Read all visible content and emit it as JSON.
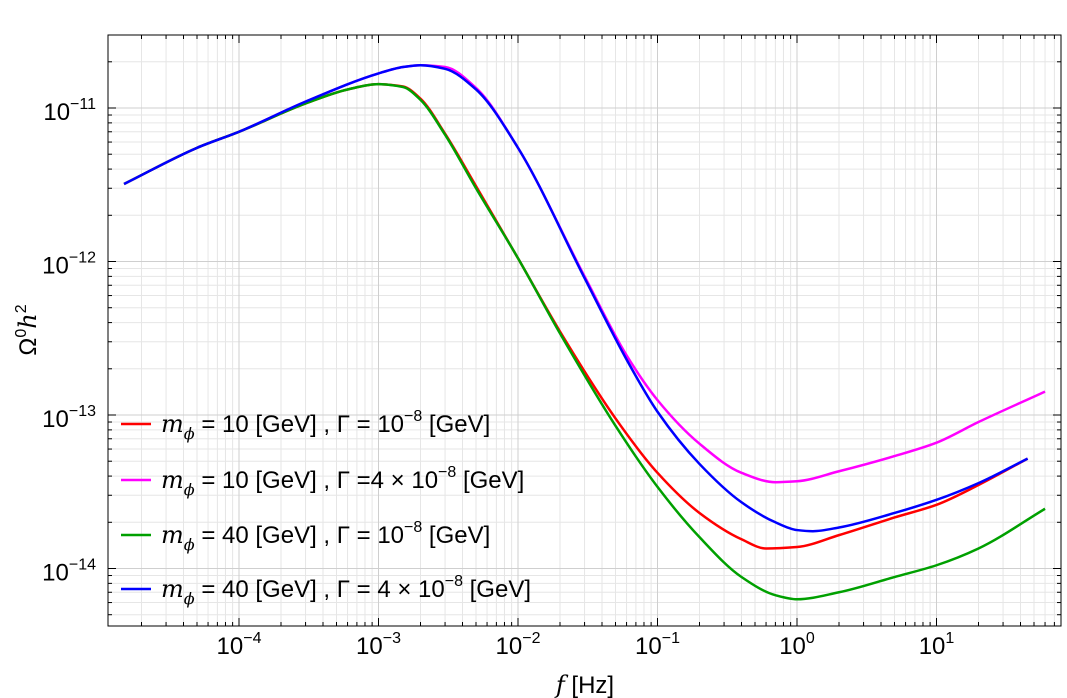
{
  "chart_data": {
    "type": "line",
    "title": "",
    "xlabel": {
      "var": "f",
      "unit": " [Hz]"
    },
    "ylabel": {
      "base": "Ω",
      "sup1": "0",
      "var": "h",
      "sup2": "2"
    },
    "xscale": "log",
    "yscale": "log",
    "xlim": [
      1.2e-05,
      70
    ],
    "ylim": [
      4e-15,
      3e-11
    ],
    "grid": true,
    "legend_position": "bottom-left",
    "x_ticks": [
      {
        "base": "10",
        "exp": "−4",
        "value": 0.0001
      },
      {
        "base": "10",
        "exp": "−3",
        "value": 0.001
      },
      {
        "base": "10",
        "exp": "−2",
        "value": 0.01
      },
      {
        "base": "10",
        "exp": "−1",
        "value": 0.1
      },
      {
        "base": "10",
        "exp": "0",
        "value": 1
      },
      {
        "base": "10",
        "exp": "1",
        "value": 10
      }
    ],
    "y_ticks": [
      {
        "base": "10",
        "exp": "−14",
        "value": 1e-14
      },
      {
        "base": "10",
        "exp": "−13",
        "value": 1e-13
      },
      {
        "base": "10",
        "exp": "−12",
        "value": 1e-12
      },
      {
        "base": "10",
        "exp": "−11",
        "value": 1e-11
      }
    ],
    "series": [
      {
        "name": "m_phi=10 GeV, Gamma=1e-8 GeV",
        "color": "#ff0000",
        "legend": {
          "m": "m",
          "sub": "ϕ",
          "mid": " = 10 [GeV] , Γ = ",
          "coef": "",
          "base": "10",
          "exp": "−8",
          "end": " [GeV]"
        },
        "x": [
          1.5e-05,
          5e-05,
          0.0001,
          0.0003,
          0.0006,
          0.001,
          0.0015,
          0.002,
          0.003,
          0.005,
          0.01,
          0.02,
          0.05,
          0.1,
          0.2,
          0.4,
          0.6,
          1,
          2,
          5,
          10,
          20,
          45
        ],
        "y": [
          3.2e-12,
          5.5e-12,
          7e-12,
          1.07e-11,
          1.32e-11,
          1.43e-11,
          1.38e-11,
          1.15e-11,
          6.8e-12,
          3.1e-12,
          1.05e-12,
          3.5e-13,
          9.5e-14,
          4.2e-14,
          2.3e-14,
          1.55e-14,
          1.35e-14,
          1.38e-14,
          1.65e-14,
          2.15e-14,
          2.6e-14,
          3.5e-14,
          5.2e-14
        ]
      },
      {
        "name": "m_phi=10 GeV, Gamma=4e-8 GeV",
        "color": "#ff00ff",
        "legend": {
          "m": "m",
          "sub": "ϕ",
          "mid": " = 10 [GeV] , Γ =",
          "coef": "4 × ",
          "base": "10",
          "exp": "−8",
          "end": " [GeV]"
        },
        "x": [
          1.5e-05,
          5e-05,
          0.0001,
          0.0003,
          0.001,
          0.0015,
          0.002,
          0.003,
          0.005,
          0.01,
          0.03,
          0.06,
          0.1,
          0.2,
          0.4,
          0.7,
          1,
          2,
          5,
          10,
          20,
          60
        ],
        "y": [
          3.2e-12,
          5.5e-12,
          7e-12,
          1.1e-11,
          1.68e-11,
          1.85e-11,
          1.9e-11,
          1.85e-11,
          1.35e-11,
          5.5e-12,
          8e-13,
          2.45e-13,
          1.25e-13,
          6.5e-14,
          4.2e-14,
          3.65e-14,
          3.7e-14,
          4.3e-14,
          5.4e-14,
          6.6e-14,
          9e-14,
          1.42e-13
        ]
      },
      {
        "name": "m_phi=40 GeV, Gamma=1e-8 GeV",
        "color": "#00a000",
        "legend": {
          "m": "m",
          "sub": "ϕ",
          "mid": " = 40 [GeV] , Γ = ",
          "coef": "",
          "base": "10",
          "exp": "−8",
          "end": " [GeV]"
        },
        "x": [
          1.5e-05,
          5e-05,
          0.0001,
          0.0003,
          0.0006,
          0.001,
          0.0015,
          0.002,
          0.003,
          0.005,
          0.01,
          0.02,
          0.05,
          0.1,
          0.2,
          0.4,
          0.7,
          1,
          2,
          5,
          10,
          20,
          60
        ],
        "y": [
          3.2e-12,
          5.5e-12,
          7e-12,
          1.07e-11,
          1.32e-11,
          1.43e-11,
          1.37e-11,
          1.13e-11,
          6.7e-12,
          3e-12,
          1.05e-12,
          3.4e-13,
          8.5e-14,
          3.4e-14,
          1.6e-14,
          8.8e-15,
          6.7e-15,
          6.3e-15,
          7e-15,
          8.8e-15,
          1.05e-14,
          1.35e-14,
          2.45e-14
        ]
      },
      {
        "name": "m_phi=40 GeV, Gamma=4e-8 GeV",
        "color": "#0000ff",
        "legend": {
          "m": "m",
          "sub": "ϕ",
          "mid": " = 40 [GeV] , Γ = ",
          "coef": "4 × ",
          "base": "10",
          "exp": "−8",
          "end": " [GeV]"
        },
        "x": [
          1.5e-05,
          5e-05,
          0.0001,
          0.0003,
          0.001,
          0.0015,
          0.002,
          0.003,
          0.005,
          0.01,
          0.03,
          0.06,
          0.1,
          0.2,
          0.4,
          0.7,
          1,
          1.3,
          2,
          5,
          10,
          20,
          45
        ],
        "y": [
          3.2e-12,
          5.5e-12,
          7e-12,
          1.1e-11,
          1.68e-11,
          1.85e-11,
          1.9e-11,
          1.8e-11,
          1.32e-11,
          5.5e-12,
          7.8e-13,
          2.3e-13,
          1.05e-13,
          4.8e-14,
          2.7e-14,
          2e-14,
          1.78e-14,
          1.75e-14,
          1.85e-14,
          2.3e-14,
          2.8e-14,
          3.6e-14,
          5.2e-14
        ]
      }
    ]
  }
}
